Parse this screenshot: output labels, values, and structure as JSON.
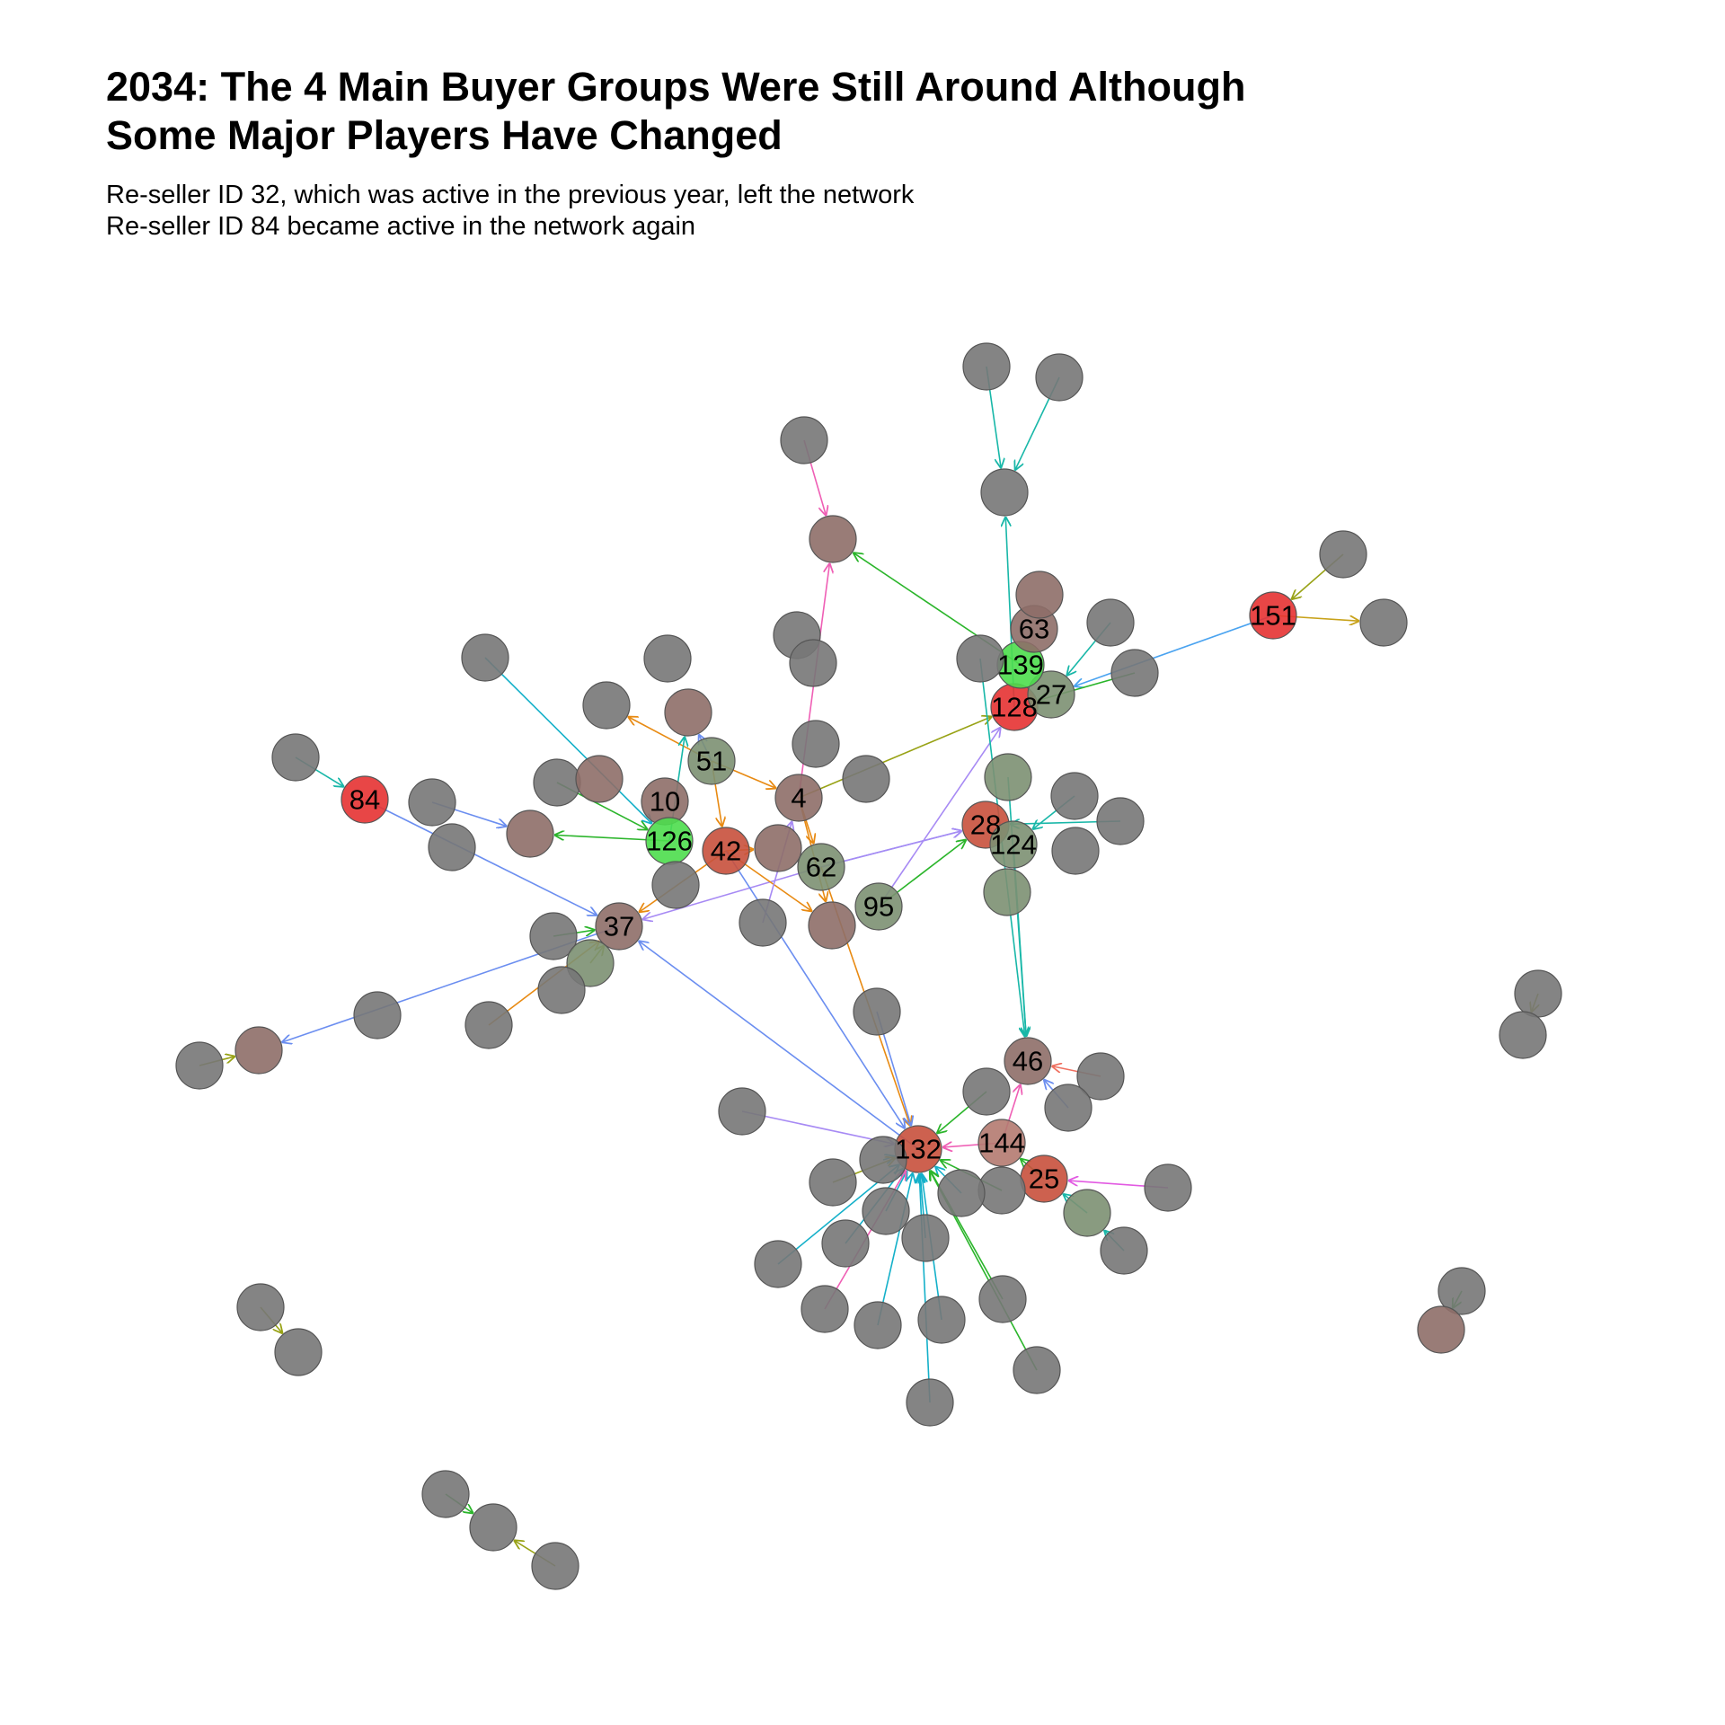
{
  "title": {
    "line1": "2034: The 4 Main Buyer Groups Were Still Around Although",
    "line2": "Some Major Players Have Changed"
  },
  "subtitle": {
    "line1": "Re-seller ID 32, which was active in the previous year, left the network",
    "line2": "Re-seller ID 84 became active in the network again"
  },
  "palette": {
    "node_gray": "#777777",
    "node_brown": "#8e6e68",
    "node_green_gray": "#7c9072",
    "node_red": "#e63232",
    "node_red_brown": "#c8503c",
    "node_bright_green": "#4ddd4d",
    "node_pink_brown": "#b47a70",
    "node_stroke": "#555555",
    "label_color": "#000000",
    "edge_colors": {
      "orange": "#e88a12",
      "teal": "#18b7a8",
      "pink": "#ef5fb5",
      "blue": "#6b8ef0",
      "violet": "#a78af4",
      "green": "#2bb52b",
      "olive": "#98a215",
      "cyan": "#14b0c9",
      "salmon": "#ef7060",
      "magenta": "#e25ae2",
      "gold": "#c8a21a",
      "sky": "#4aa3f0"
    }
  }
}
